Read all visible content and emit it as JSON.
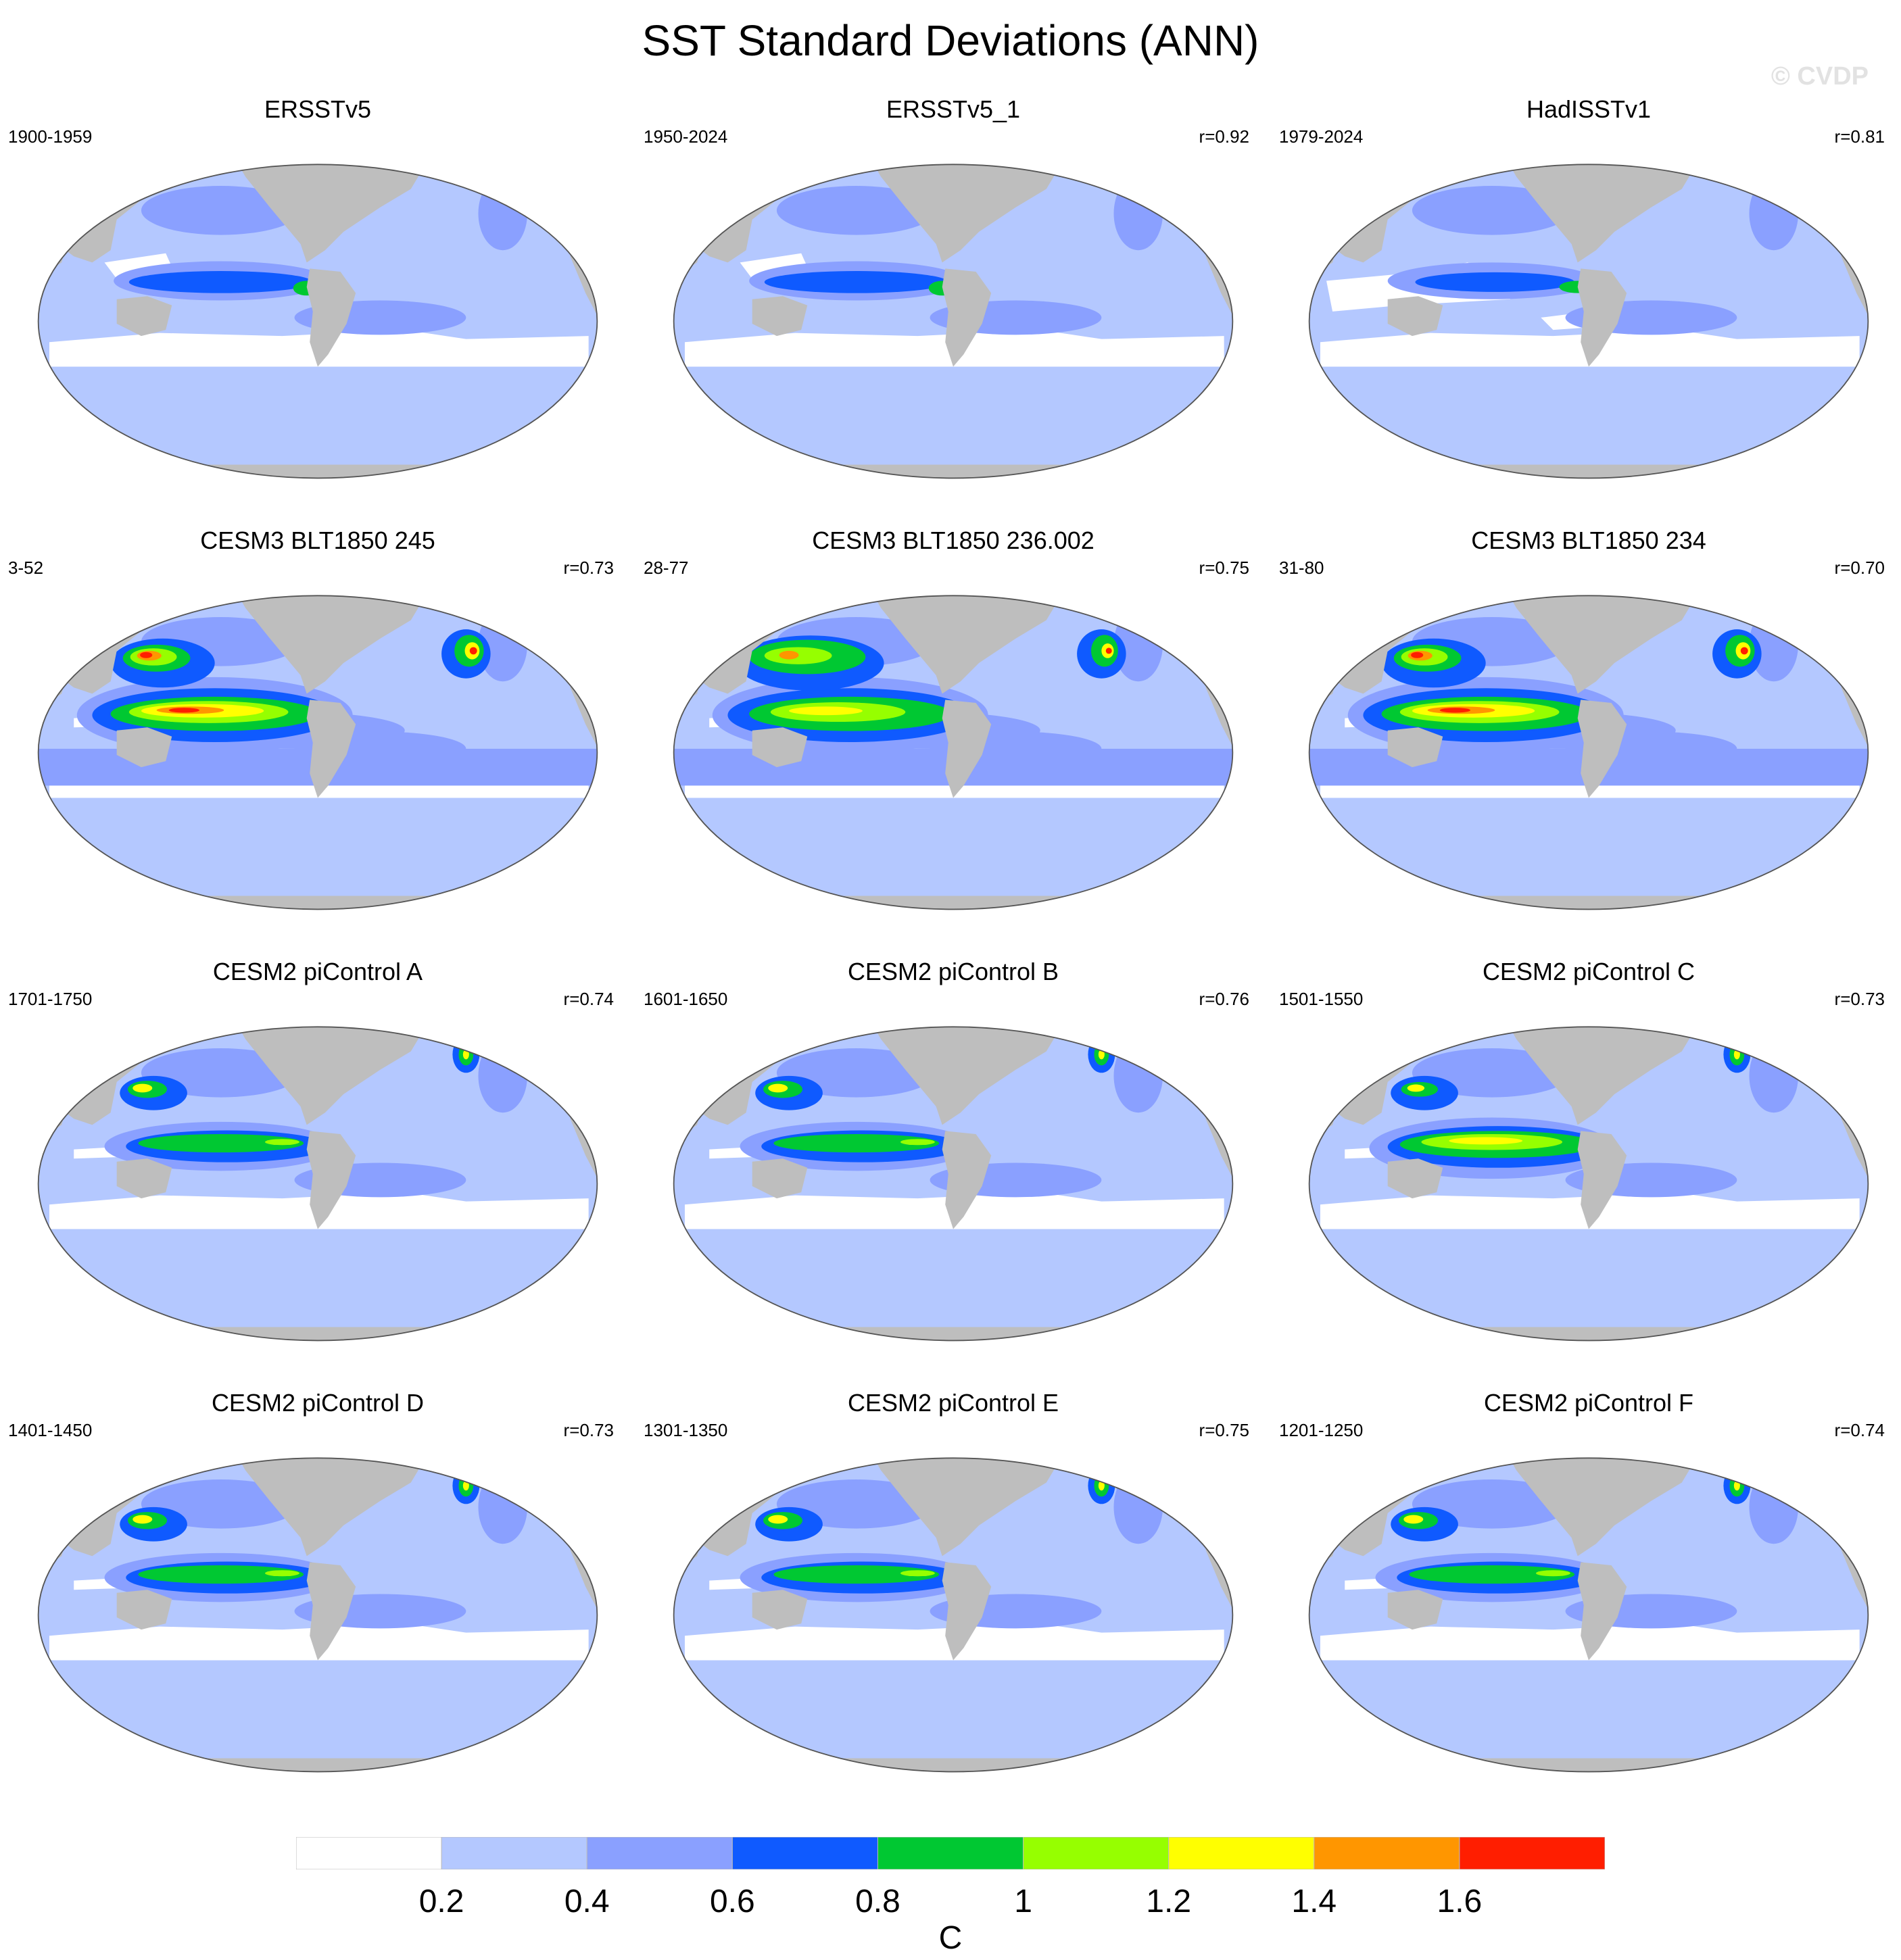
{
  "title": "SST Standard Deviations (ANN)",
  "watermark": "© CVDP",
  "panels": [
    {
      "title": "ERSSTv5",
      "period": "1900-1959",
      "r": "",
      "type": "obs1"
    },
    {
      "title": "ERSSTv5_1",
      "period": "1950-2024",
      "r": "r=0.92",
      "type": "obs1"
    },
    {
      "title": "HadISSTv1",
      "period": "1979-2024",
      "r": "r=0.81",
      "type": "obs2"
    },
    {
      "title": "CESM3 BLT1850 245",
      "period": "3-52",
      "r": "r=0.73",
      "type": "cesm3"
    },
    {
      "title": "CESM3 BLT1850 236.002",
      "period": "28-77",
      "r": "r=0.75",
      "type": "cesm3b"
    },
    {
      "title": "CESM3 BLT1850 234",
      "period": "31-80",
      "r": "r=0.70",
      "type": "cesm3"
    },
    {
      "title": "CESM2 piControl A",
      "period": "1701-1750",
      "r": "r=0.74",
      "type": "cesm2"
    },
    {
      "title": "CESM2 piControl B",
      "period": "1601-1650",
      "r": "r=0.76",
      "type": "cesm2"
    },
    {
      "title": "CESM2 piControl C",
      "period": "1501-1550",
      "r": "r=0.73",
      "type": "cesm2c"
    },
    {
      "title": "CESM2 piControl D",
      "period": "1401-1450",
      "r": "r=0.73",
      "type": "cesm2"
    },
    {
      "title": "CESM2 piControl E",
      "period": "1301-1350",
      "r": "r=0.75",
      "type": "cesm2"
    },
    {
      "title": "CESM2 piControl F",
      "period": "1201-1250",
      "r": "r=0.74",
      "type": "cesm2"
    }
  ],
  "colorbar": {
    "unit": "C",
    "ticks": [
      "0.2",
      "0.4",
      "0.6",
      "0.8",
      "1",
      "1.2",
      "1.4",
      "1.6"
    ],
    "colors": [
      "#ffffff",
      "#b4c8ff",
      "#8aa0ff",
      "#0f5aff",
      "#00c832",
      "#96ff00",
      "#ffff00",
      "#ff9600",
      "#ff1e00"
    ]
  },
  "land_color": "#bebebe"
}
